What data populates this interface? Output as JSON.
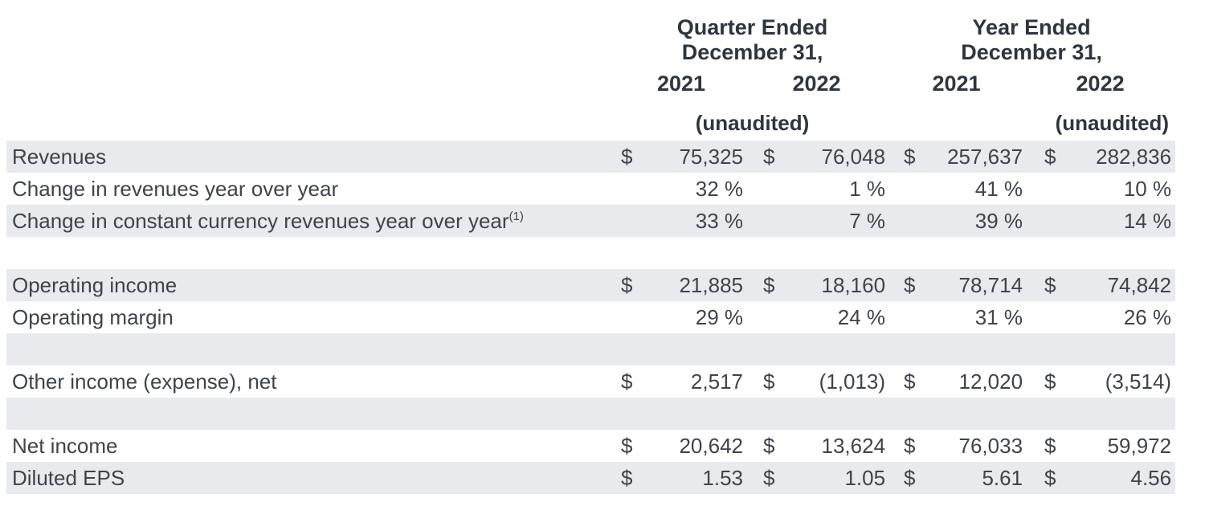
{
  "table": {
    "header": {
      "groups": [
        {
          "line1": "Quarter Ended",
          "line2": "December 31,"
        },
        {
          "line1": "Year Ended",
          "line2": "December 31,"
        }
      ],
      "years": [
        "2021",
        "2022",
        "2021",
        "2022"
      ],
      "unaudited_quarter": "(unaudited)",
      "unaudited_year": "(unaudited)"
    },
    "rows": [
      {
        "type": "data",
        "label": "Revenues",
        "label_sup": "",
        "cells": [
          {
            "currency": "$",
            "value": "75,325"
          },
          {
            "currency": "$",
            "value": "76,048"
          },
          {
            "currency": "$",
            "value": "257,637"
          },
          {
            "currency": "$",
            "value": "282,836"
          }
        ]
      },
      {
        "type": "data",
        "label": "Change in revenues year over year",
        "label_sup": "",
        "cells": [
          {
            "currency": "",
            "value": "32 %"
          },
          {
            "currency": "",
            "value": "1 %"
          },
          {
            "currency": "",
            "value": "41 %"
          },
          {
            "currency": "",
            "value": "10 %"
          }
        ]
      },
      {
        "type": "data",
        "label": "Change in constant currency revenues year over year",
        "label_sup": "(1)",
        "cells": [
          {
            "currency": "",
            "value": "33 %"
          },
          {
            "currency": "",
            "value": "7 %"
          },
          {
            "currency": "",
            "value": "39 %"
          },
          {
            "currency": "",
            "value": "14 %"
          }
        ]
      },
      {
        "type": "spacer"
      },
      {
        "type": "data",
        "label": "Operating income",
        "label_sup": "",
        "cells": [
          {
            "currency": "$",
            "value": "21,885"
          },
          {
            "currency": "$",
            "value": "18,160"
          },
          {
            "currency": "$",
            "value": "78,714"
          },
          {
            "currency": "$",
            "value": "74,842"
          }
        ]
      },
      {
        "type": "data",
        "label": "Operating margin",
        "label_sup": "",
        "cells": [
          {
            "currency": "",
            "value": "29 %"
          },
          {
            "currency": "",
            "value": "24 %"
          },
          {
            "currency": "",
            "value": "31 %"
          },
          {
            "currency": "",
            "value": "26 %"
          }
        ]
      },
      {
        "type": "spacer"
      },
      {
        "type": "data",
        "label": "Other income (expense), net",
        "label_sup": "",
        "cells": [
          {
            "currency": "$",
            "value": "2,517"
          },
          {
            "currency": "$",
            "value": "(1,013)"
          },
          {
            "currency": "$",
            "value": "12,020"
          },
          {
            "currency": "$",
            "value": "(3,514)"
          }
        ]
      },
      {
        "type": "spacer"
      },
      {
        "type": "data",
        "label": "Net income",
        "label_sup": "",
        "cells": [
          {
            "currency": "$",
            "value": "20,642"
          },
          {
            "currency": "$",
            "value": "13,624"
          },
          {
            "currency": "$",
            "value": "76,033"
          },
          {
            "currency": "$",
            "value": "59,972"
          }
        ]
      },
      {
        "type": "data",
        "label": "Diluted EPS",
        "label_sup": "",
        "cells": [
          {
            "currency": "$",
            "value": "1.53"
          },
          {
            "currency": "$",
            "value": "1.05"
          },
          {
            "currency": "$",
            "value": "5.61"
          },
          {
            "currency": "$",
            "value": "4.56"
          }
        ]
      }
    ],
    "colors": {
      "stripe": "#e8eaed",
      "body_text": "#3f444b",
      "header_text": "#2f3540"
    }
  }
}
